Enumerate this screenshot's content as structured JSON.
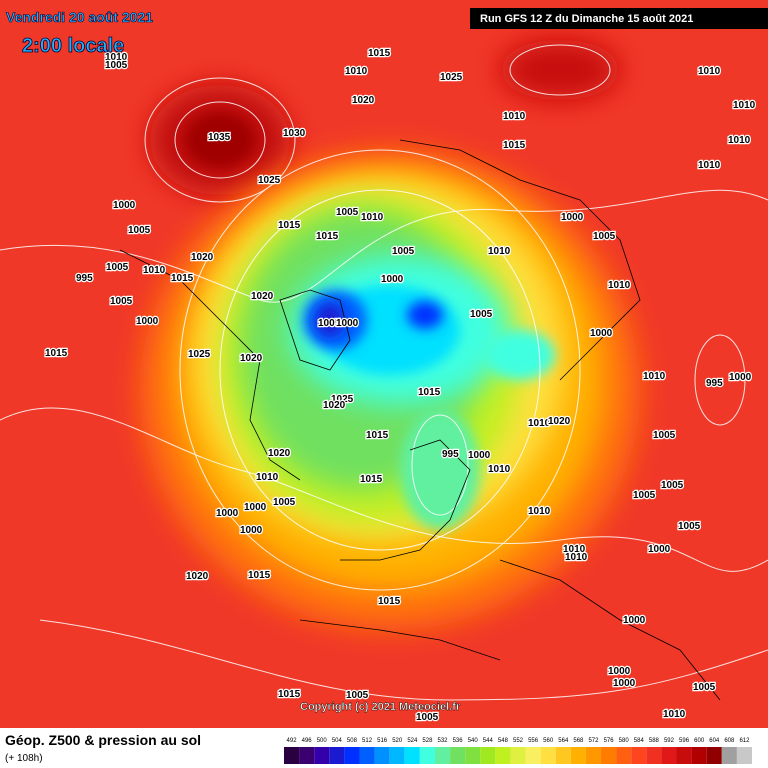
{
  "header": {
    "date": "Vendredi 20 août 2021",
    "time": "2:00 locale",
    "run": "Run GFS 12 Z du Dimanche 15 août 2021"
  },
  "footer": {
    "title": "Géop. Z500 & pression au sol",
    "lead": "(+ 108h)",
    "copyright": "Copyright (c) 2021 Meteociel.fr"
  },
  "legend": {
    "ticks": [
      492,
      496,
      500,
      504,
      508,
      512,
      516,
      520,
      524,
      528,
      532,
      536,
      540,
      544,
      548,
      552,
      556,
      560,
      564,
      568,
      572,
      576,
      580,
      584,
      588,
      592,
      596,
      600,
      604,
      608,
      612
    ],
    "colors": [
      "#2a0040",
      "#3a0070",
      "#3300aa",
      "#1a1ad0",
      "#0030ff",
      "#0060ff",
      "#0090ff",
      "#00b8ff",
      "#00e0ff",
      "#40ffe0",
      "#60f0a0",
      "#70e060",
      "#80e040",
      "#a0e820",
      "#c0f020",
      "#e0f040",
      "#f8f060",
      "#ffe040",
      "#ffc820",
      "#ffb000",
      "#ff9800",
      "#ff7c00",
      "#ff6010",
      "#ff4420",
      "#f03020",
      "#e01818",
      "#c80c0c",
      "#b00000",
      "#900000",
      "#a0a0a0",
      "#c8c8c8"
    ]
  },
  "isobar_labels": [
    "1010",
    "1005",
    "1015",
    "1010",
    "1025",
    "1020",
    "1010",
    "1015",
    "1010",
    "1010",
    "1010",
    "1010",
    "1035",
    "1030",
    "1025",
    "1000",
    "1005",
    "995",
    "1005",
    "1010",
    "1005",
    "1000",
    "1015",
    "1020",
    "1015",
    "1005",
    "1010",
    "1015",
    "1005",
    "1000",
    "1010",
    "1000",
    "1005",
    "1010",
    "1005",
    "1000",
    "1020",
    "1005",
    "1000",
    "1025",
    "1020",
    "1015",
    "1010",
    "995",
    "1000",
    "1015",
    "1025",
    "1020",
    "1015",
    "1010",
    "1020",
    "1005",
    "1020",
    "995",
    "1000",
    "1010",
    "1010",
    "1015",
    "1005",
    "1005",
    "1005",
    "1010",
    "1005",
    "1000",
    "1000",
    "1000",
    "1010",
    "1010",
    "1000",
    "1020",
    "1015",
    "1015",
    "1000",
    "1000",
    "1000",
    "1005",
    "1015",
    "1005",
    "1010",
    "1005"
  ]
}
